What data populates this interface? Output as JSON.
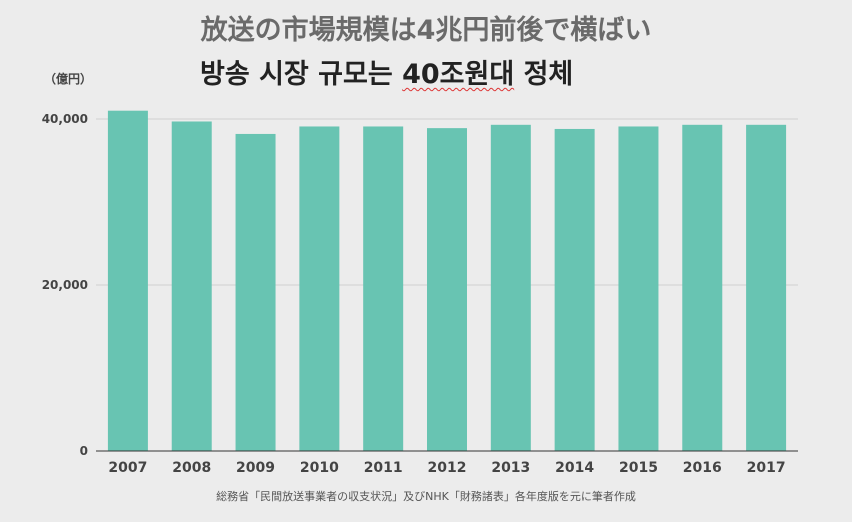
{
  "title": "放送の市場規模は4兆円前後で横ばい",
  "subtitle_ko": {
    "before": "방송 시장 규모는 ",
    "underlined": "40조원대",
    "after": " 정체"
  },
  "footnote": "総務省「民間放送事業者の収支状況」及びNHK「財務諸表」各年度版を元に筆者作成",
  "colors": {
    "bar": "#68c4b2",
    "grid": "#cfcfcf",
    "background": "#ececec"
  },
  "chart_data": {
    "type": "bar",
    "title": "放送の市場規模は4兆円前後で横ばい",
    "ylabel": "（億円）",
    "xlabel": "",
    "categories": [
      "2007",
      "2008",
      "2009",
      "2010",
      "2011",
      "2012",
      "2013",
      "2014",
      "2015",
      "2016",
      "2017"
    ],
    "values": [
      41000,
      39700,
      38200,
      39100,
      39100,
      38900,
      39300,
      38800,
      39100,
      39300,
      39300
    ],
    "ylim": [
      0,
      41000
    ],
    "yticks": [
      0,
      20000,
      40000
    ],
    "ytick_labels": [
      "0",
      "20,000",
      "40,000"
    ],
    "grid": true,
    "legend": "none"
  }
}
